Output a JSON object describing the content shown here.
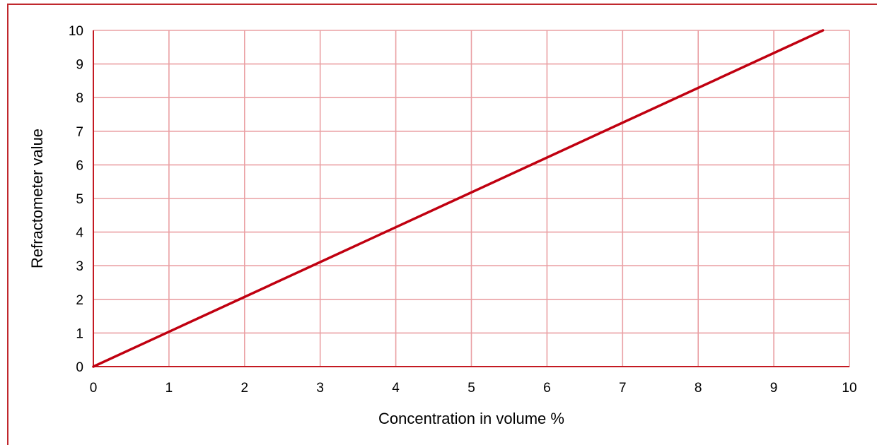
{
  "colors": {
    "frame": "#c0282d",
    "grid": "#eaa0a4",
    "axis": "#c41a22",
    "line": "#c00010"
  },
  "chart_data": {
    "type": "line",
    "title": "",
    "xlabel": "Concentration in volume %",
    "ylabel": "Refractometer value",
    "xlim": [
      0,
      10
    ],
    "ylim": [
      0,
      10
    ],
    "xticks": [
      "0",
      "1",
      "2",
      "3",
      "4",
      "5",
      "6",
      "7",
      "8",
      "9",
      "10"
    ],
    "yticks": [
      "0",
      "1",
      "2",
      "3",
      "4",
      "5",
      "6",
      "7",
      "8",
      "9",
      "10"
    ],
    "grid": true,
    "legend": "none",
    "series": [
      {
        "x": [
          0,
          9.65
        ],
        "y": [
          0,
          10
        ]
      }
    ]
  }
}
